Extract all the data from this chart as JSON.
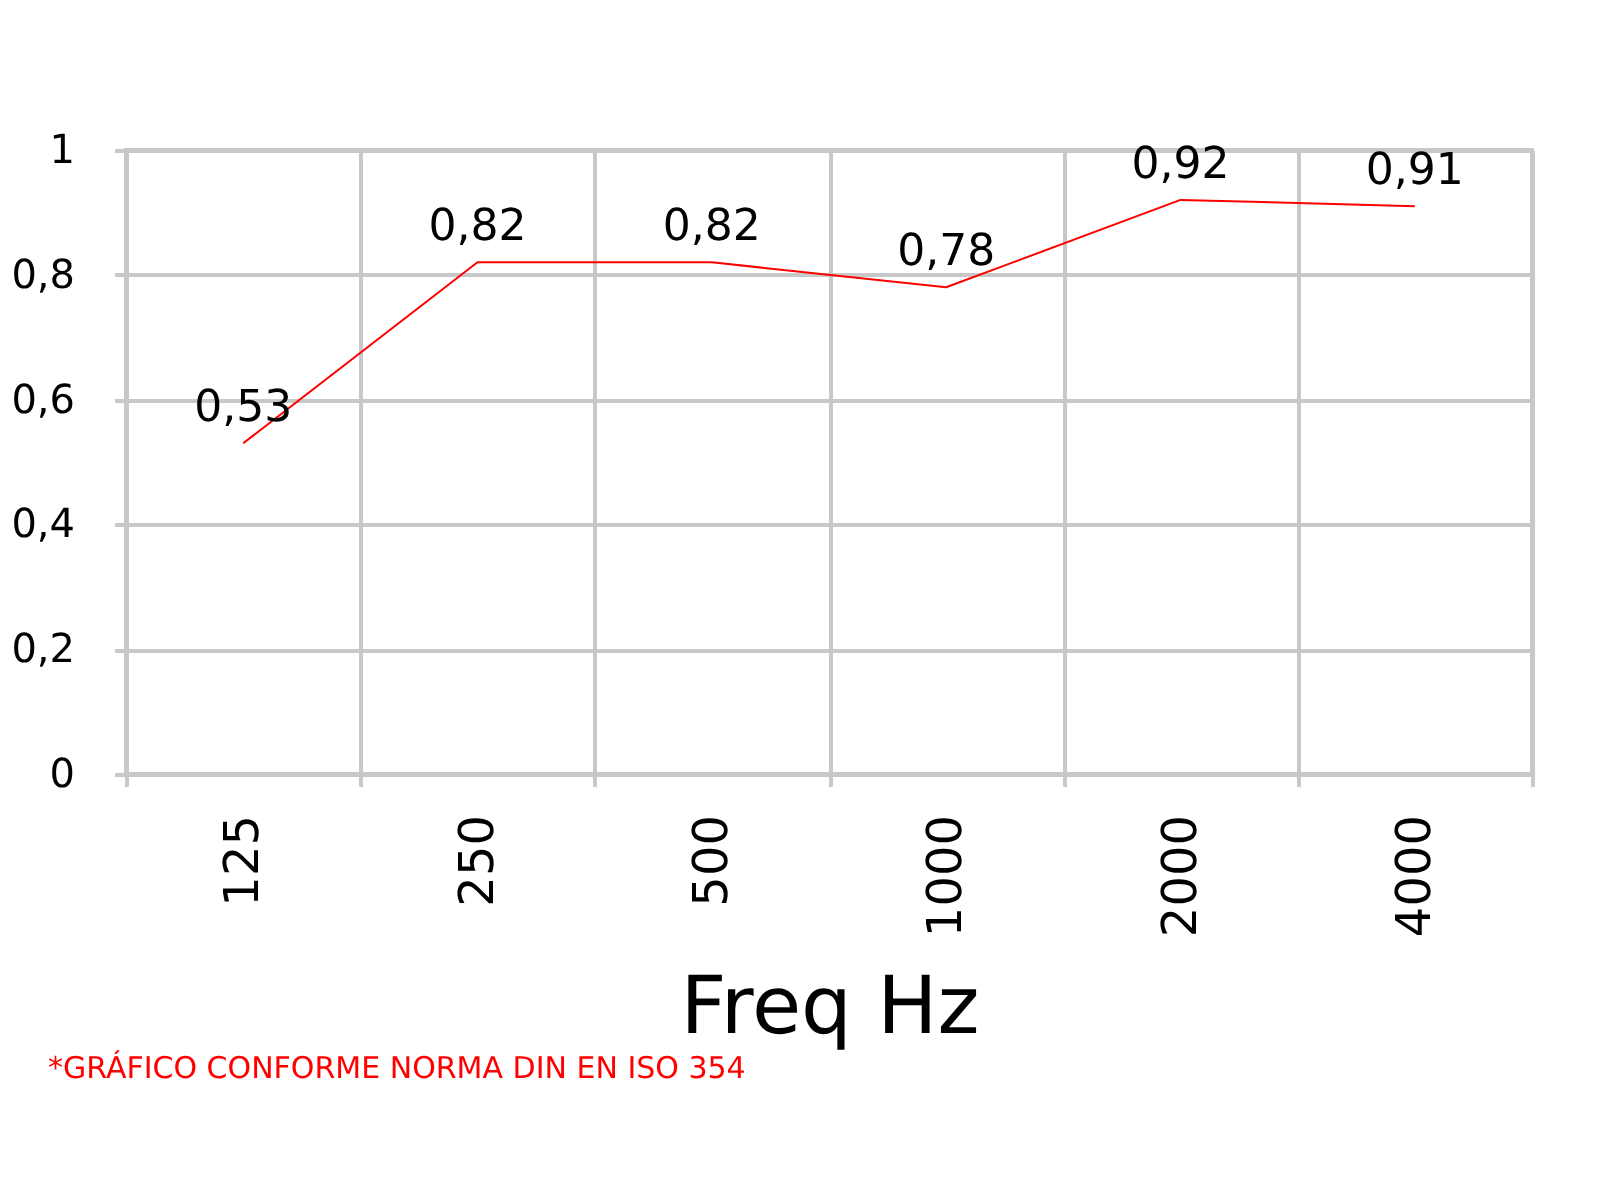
{
  "chart_data": {
    "type": "line",
    "categories": [
      "125",
      "250",
      "500",
      "1000",
      "2000",
      "4000"
    ],
    "series": [
      {
        "color": "#ff0000",
        "values": [
          0.53,
          0.82,
          0.82,
          0.78,
          0.92,
          0.91
        ],
        "value_labels": [
          "0,53",
          "0,82",
          "0,82",
          "0,78",
          "0,92",
          "0,91"
        ]
      }
    ],
    "xlabel": "Freq  Hz",
    "ylim": [
      0,
      1
    ],
    "yticks": [
      0,
      {
        "value": 0.2,
        "label": "0,2"
      },
      {
        "value": 0.4,
        "label": "0,4"
      },
      {
        "value": 0.6,
        "label": "0,6"
      },
      {
        "value": 0.8,
        "label": "0,8"
      },
      1
    ],
    "grid": true,
    "marker": "none",
    "annotations": [
      "*GRÁFICO CONFORME NORMA DIN EN ISO 354"
    ]
  }
}
